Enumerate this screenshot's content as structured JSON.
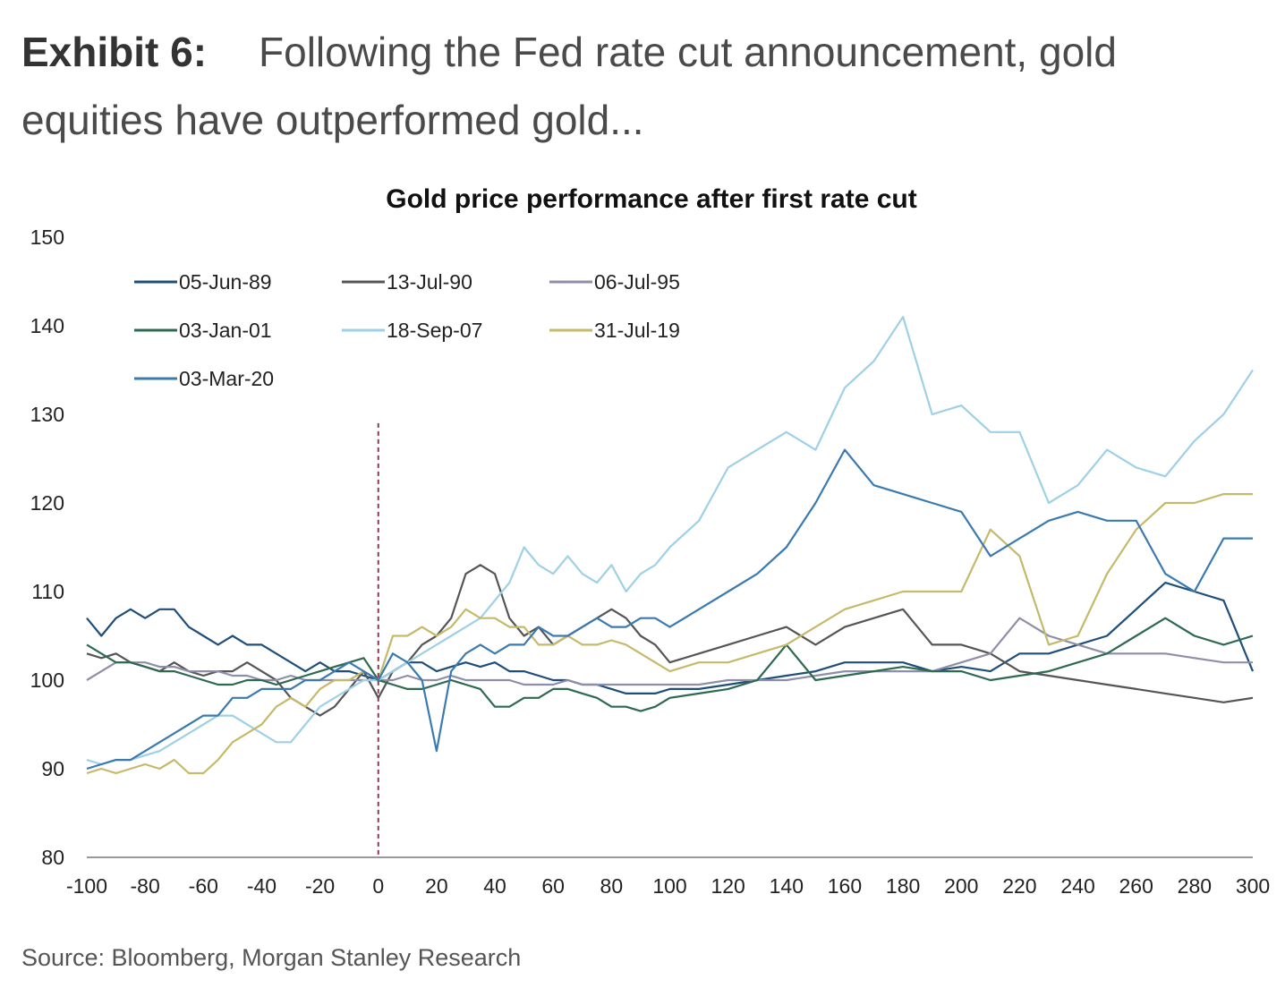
{
  "exhibit": {
    "label": "Exhibit 6:",
    "title": "Following the Fed rate cut announcement, gold equities have outperformed gold..."
  },
  "source": "Source: Bloomberg, Morgan Stanley Research",
  "chart_data": {
    "type": "line",
    "title": "Gold price performance after first rate cut",
    "xlabel": "",
    "ylabel": "",
    "xlim": [
      -100,
      300
    ],
    "ylim": [
      80,
      150
    ],
    "x_ticks": [
      -100,
      -80,
      -60,
      -40,
      -20,
      0,
      20,
      40,
      60,
      80,
      100,
      120,
      140,
      160,
      180,
      200,
      220,
      240,
      260,
      280,
      300
    ],
    "y_ticks": [
      80,
      90,
      100,
      110,
      120,
      130,
      140,
      150
    ],
    "grid": false,
    "legend_position": "top-left",
    "reference_line": {
      "x": 0,
      "style": "dashed",
      "color": "#8b3a4a"
    },
    "series": [
      {
        "name": "05-Jun-89",
        "color": "#1f4e79",
        "x": [
          -100,
          -95,
          -90,
          -85,
          -80,
          -75,
          -70,
          -65,
          -60,
          -55,
          -50,
          -45,
          -40,
          -35,
          -30,
          -25,
          -20,
          -15,
          -10,
          -5,
          0,
          5,
          10,
          15,
          20,
          25,
          30,
          35,
          40,
          45,
          50,
          55,
          60,
          65,
          70,
          75,
          80,
          85,
          90,
          95,
          100,
          110,
          120,
          130,
          140,
          150,
          160,
          170,
          180,
          190,
          200,
          210,
          220,
          230,
          240,
          250,
          260,
          270,
          280,
          290,
          300
        ],
        "y": [
          107,
          105,
          107,
          108,
          107,
          108,
          108,
          106,
          105,
          104,
          105,
          104,
          104,
          103,
          102,
          101,
          102,
          101,
          101,
          100.5,
          100,
          101,
          102,
          102,
          101,
          101.5,
          102,
          101.5,
          102,
          101,
          101,
          100.5,
          100,
          100,
          99.5,
          99.5,
          99,
          98.5,
          98.5,
          98.5,
          99,
          99,
          99.5,
          100,
          100.5,
          101,
          102,
          102,
          102,
          101,
          101.5,
          101,
          103,
          103,
          104,
          105,
          108,
          111,
          110,
          109,
          101
        ]
      },
      {
        "name": "13-Jul-90",
        "color": "#555555",
        "x": [
          -100,
          -95,
          -90,
          -85,
          -80,
          -75,
          -70,
          -65,
          -60,
          -55,
          -50,
          -45,
          -40,
          -35,
          -30,
          -25,
          -20,
          -15,
          -10,
          -5,
          0,
          5,
          10,
          15,
          20,
          25,
          30,
          35,
          40,
          45,
          50,
          55,
          60,
          65,
          70,
          75,
          80,
          85,
          90,
          95,
          100,
          110,
          120,
          130,
          140,
          150,
          160,
          170,
          180,
          190,
          200,
          210,
          220,
          230,
          240,
          250,
          260,
          270,
          280,
          290,
          300
        ],
        "y": [
          103,
          102.5,
          103,
          102,
          101.5,
          101,
          102,
          101,
          100.5,
          101,
          101,
          102,
          101,
          100,
          98,
          97,
          96,
          97,
          99,
          101,
          98,
          101,
          102,
          104,
          105,
          107,
          112,
          113,
          112,
          107,
          105,
          106,
          104,
          105,
          106,
          107,
          108,
          107,
          105,
          104,
          102,
          103,
          104,
          105,
          106,
          104,
          106,
          107,
          108,
          104,
          104,
          103,
          101,
          100.5,
          100,
          99.5,
          99,
          98.5,
          98,
          97.5,
          98
        ]
      },
      {
        "name": "06-Jul-95",
        "color": "#8e8eaa",
        "x": [
          -100,
          -95,
          -90,
          -85,
          -80,
          -75,
          -70,
          -65,
          -60,
          -55,
          -50,
          -45,
          -40,
          -35,
          -30,
          -25,
          -20,
          -15,
          -10,
          -5,
          0,
          5,
          10,
          15,
          20,
          25,
          30,
          35,
          40,
          45,
          50,
          55,
          60,
          65,
          70,
          75,
          80,
          85,
          90,
          95,
          100,
          110,
          120,
          130,
          140,
          150,
          160,
          170,
          180,
          190,
          200,
          210,
          220,
          230,
          240,
          250,
          260,
          270,
          280,
          290,
          300
        ],
        "y": [
          100,
          101,
          102,
          102,
          102,
          101.5,
          101.5,
          101,
          101,
          101,
          100.5,
          100.5,
          100,
          100,
          100.5,
          100,
          100,
          100,
          100,
          100,
          100,
          100,
          100.5,
          100,
          100,
          100.5,
          100,
          100,
          100,
          100,
          99.5,
          99.5,
          99.5,
          100,
          99.5,
          99.5,
          99.5,
          99.5,
          99.5,
          99.5,
          99.5,
          99.5,
          100,
          100,
          100,
          100.5,
          101,
          101,
          101,
          101,
          102,
          103,
          107,
          105,
          104,
          103,
          103,
          103,
          102.5,
          102,
          102
        ]
      },
      {
        "name": "03-Jan-01",
        "color": "#2d6a4f",
        "x": [
          -100,
          -95,
          -90,
          -85,
          -80,
          -75,
          -70,
          -65,
          -60,
          -55,
          -50,
          -45,
          -40,
          -35,
          -30,
          -25,
          -20,
          -15,
          -10,
          -5,
          0,
          5,
          10,
          15,
          20,
          25,
          30,
          35,
          40,
          45,
          50,
          55,
          60,
          65,
          70,
          75,
          80,
          85,
          90,
          95,
          100,
          110,
          120,
          130,
          140,
          150,
          160,
          170,
          180,
          190,
          200,
          210,
          220,
          230,
          240,
          250,
          260,
          270,
          280,
          290,
          300
        ],
        "y": [
          104,
          103,
          102,
          102,
          101.5,
          101,
          101,
          100.5,
          100,
          99.5,
          99.5,
          100,
          100,
          99.5,
          100,
          100.5,
          101,
          101.5,
          102,
          102.5,
          100,
          99.5,
          99,
          99,
          99.5,
          100,
          99.5,
          99,
          97,
          97,
          98,
          98,
          99,
          99,
          98.5,
          98,
          97,
          97,
          96.5,
          97,
          98,
          98.5,
          99,
          100,
          104,
          100,
          100.5,
          101,
          101.5,
          101,
          101,
          100,
          100.5,
          101,
          102,
          103,
          105,
          107,
          105,
          104,
          105
        ]
      },
      {
        "name": "18-Sep-07",
        "color": "#9ed0e6",
        "x": [
          -100,
          -95,
          -90,
          -85,
          -80,
          -75,
          -70,
          -65,
          -60,
          -55,
          -50,
          -45,
          -40,
          -35,
          -30,
          -25,
          -20,
          -15,
          -10,
          -5,
          0,
          5,
          10,
          15,
          20,
          25,
          30,
          35,
          40,
          45,
          50,
          55,
          60,
          65,
          70,
          75,
          80,
          85,
          90,
          95,
          100,
          110,
          120,
          130,
          140,
          150,
          160,
          170,
          180,
          190,
          200,
          210,
          220,
          230,
          240,
          250,
          260,
          270,
          280,
          290,
          300
        ],
        "y": [
          91,
          90.5,
          91,
          91,
          91.5,
          92,
          93,
          94,
          95,
          96,
          96,
          95,
          94,
          93,
          93,
          95,
          97,
          98,
          99,
          100,
          100,
          101,
          102,
          103,
          104,
          105,
          106,
          107,
          109,
          111,
          115,
          113,
          112,
          114,
          112,
          111,
          113,
          110,
          112,
          113,
          115,
          118,
          124,
          126,
          128,
          126,
          133,
          136,
          141,
          130,
          131,
          128,
          128,
          120,
          122,
          126,
          124,
          123,
          127,
          130,
          135
        ]
      },
      {
        "name": "31-Jul-19",
        "color": "#c5b96a",
        "x": [
          -100,
          -95,
          -90,
          -85,
          -80,
          -75,
          -70,
          -65,
          -60,
          -55,
          -50,
          -45,
          -40,
          -35,
          -30,
          -25,
          -20,
          -15,
          -10,
          -5,
          0,
          5,
          10,
          15,
          20,
          25,
          30,
          35,
          40,
          45,
          50,
          55,
          60,
          65,
          70,
          75,
          80,
          85,
          90,
          95,
          100,
          110,
          120,
          130,
          140,
          150,
          160,
          170,
          180,
          190,
          200,
          210,
          220,
          230,
          240,
          250,
          260,
          270,
          280,
          290,
          300
        ],
        "y": [
          89.5,
          90,
          89.5,
          90,
          90.5,
          90,
          91,
          89.5,
          89.5,
          91,
          93,
          94,
          95,
          97,
          98,
          97,
          99,
          100,
          100,
          101,
          100,
          105,
          105,
          106,
          105,
          106,
          108,
          107,
          107,
          106,
          106,
          104,
          104,
          105,
          104,
          104,
          104.5,
          104,
          103,
          102,
          101,
          102,
          102,
          103,
          104,
          106,
          108,
          109,
          110,
          110,
          110,
          117,
          114,
          104,
          105,
          112,
          117,
          120,
          120,
          121,
          121
        ]
      },
      {
        "name": "03-Mar-20",
        "color": "#3a7ab0",
        "x": [
          -100,
          -95,
          -90,
          -85,
          -80,
          -75,
          -70,
          -65,
          -60,
          -55,
          -50,
          -45,
          -40,
          -35,
          -30,
          -25,
          -20,
          -15,
          -10,
          -5,
          0,
          5,
          10,
          15,
          20,
          25,
          30,
          35,
          40,
          45,
          50,
          55,
          60,
          65,
          70,
          75,
          80,
          85,
          90,
          95,
          100,
          110,
          120,
          130,
          140,
          150,
          160,
          170,
          180,
          190,
          200,
          210,
          220,
          230,
          240,
          250,
          260,
          270,
          280,
          290,
          300
        ],
        "y": [
          90,
          90.5,
          91,
          91,
          92,
          93,
          94,
          95,
          96,
          96,
          98,
          98,
          99,
          99,
          99,
          100,
          100,
          101,
          102,
          101,
          100,
          103,
          102,
          100,
          92,
          101,
          103,
          104,
          103,
          104,
          104,
          106,
          105,
          105,
          106,
          107,
          106,
          106,
          107,
          107,
          106,
          108,
          110,
          112,
          115,
          120,
          126,
          122,
          121,
          120,
          119,
          114,
          116,
          118,
          119,
          118,
          118,
          112,
          110,
          116,
          116
        ]
      }
    ]
  }
}
